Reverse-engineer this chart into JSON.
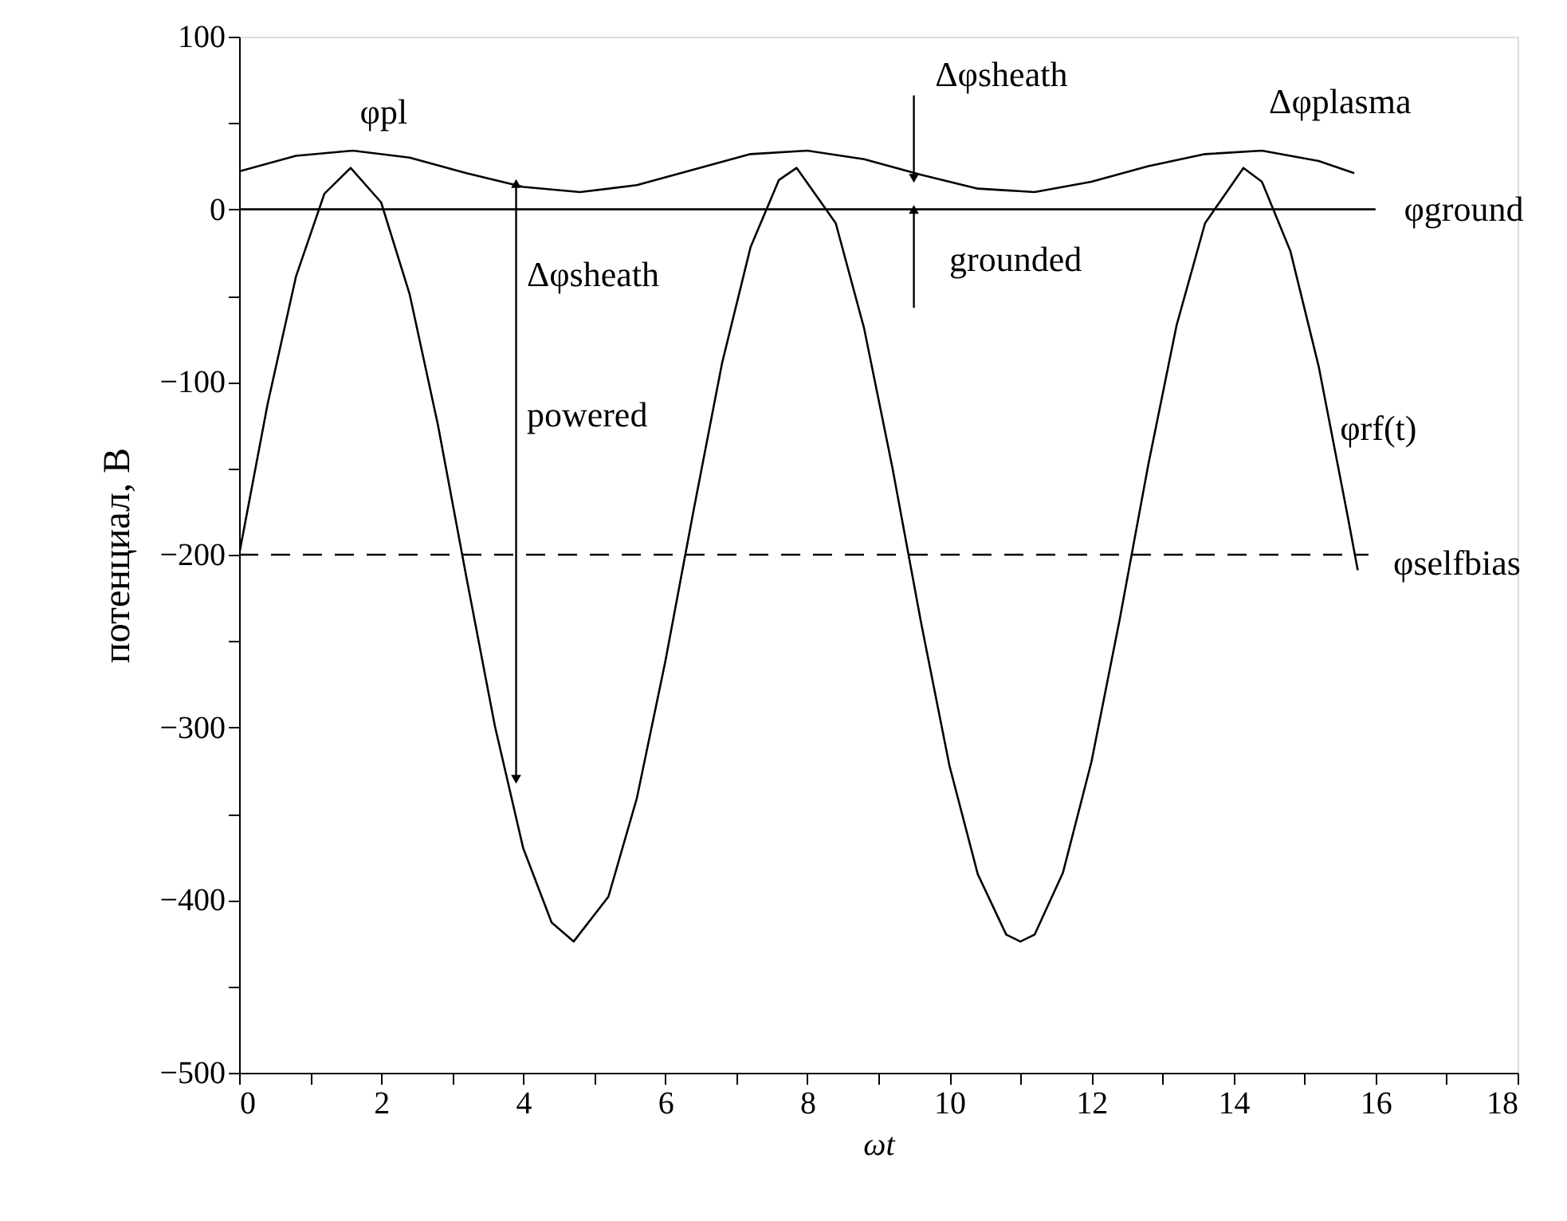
{
  "chart_data": {
    "type": "line",
    "xlabel": "ωt",
    "ylabel": "потенциал, В",
    "xlim": [
      0,
      18
    ],
    "ylim": [
      -500,
      100
    ],
    "xticks": [
      0,
      {
        "value": 1,
        "label": null
      },
      2,
      {
        "value": 3,
        "label": null
      },
      4,
      {
        "value": 5,
        "label": null
      },
      6,
      {
        "value": 7,
        "label": null
      },
      8,
      {
        "value": 9,
        "label": null
      },
      10,
      {
        "value": 11,
        "label": null
      },
      12,
      {
        "value": 13,
        "label": null
      },
      14,
      {
        "value": 15,
        "label": null
      },
      16,
      {
        "value": 17,
        "label": null
      },
      18
    ],
    "yticks": [
      {
        "value": -500,
        "label": "−500"
      },
      {
        "value": -450,
        "label": null
      },
      {
        "value": -400,
        "label": "−400"
      },
      {
        "value": -350,
        "label": null
      },
      {
        "value": -300,
        "label": "−300"
      },
      {
        "value": -250,
        "label": null
      },
      {
        "value": -200,
        "label": "−200"
      },
      {
        "value": -150,
        "label": null
      },
      {
        "value": -100,
        "label": "−100"
      },
      {
        "value": -50,
        "label": null
      },
      0,
      {
        "value": 50,
        "label": null
      },
      100
    ],
    "grid": false,
    "marker": "none",
    "series": [
      {
        "color": "#000000",
        "line_style": "solid",
        "x": [
          0,
          0.4,
          0.8,
          1.2,
          1.57,
          2.0,
          2.4,
          2.8,
          3.2,
          3.6,
          4.0,
          4.4,
          4.71,
          5.2,
          5.6,
          6.0,
          6.4,
          6.8,
          7.2,
          7.6,
          7.85,
          8.4,
          8.8,
          9.2,
          9.6,
          10.0,
          10.4,
          10.8,
          11.0,
          11.2,
          11.6,
          12.0,
          12.4,
          12.8,
          13.2,
          13.6,
          14.14,
          14.4,
          14.8,
          15.2,
          15.6,
          15.75
        ],
        "values": [
          -200,
          -113,
          -39,
          9,
          24,
          4,
          -49,
          -125,
          -213,
          -299,
          -370,
          -413,
          -424,
          -398,
          -341,
          -262,
          -174,
          -89,
          -22,
          17,
          24,
          -8,
          -69,
          -150,
          -239,
          -322,
          -385,
          -420,
          -424,
          -420,
          -384,
          -320,
          -237,
          -148,
          -67,
          -8,
          24,
          16,
          -24,
          -91,
          -176,
          -209
        ]
      },
      {
        "color": "#000000",
        "line_style": "solid",
        "x": [
          0,
          0.8,
          1.6,
          2.4,
          3.2,
          4.0,
          4.8,
          5.6,
          6.4,
          7.2,
          8.0,
          8.8,
          9.6,
          10.4,
          11.2,
          12.0,
          12.8,
          13.6,
          14.4,
          15.2,
          15.7
        ],
        "values": [
          22,
          31,
          34,
          30,
          21,
          13,
          10,
          14,
          23,
          32,
          34,
          29,
          20,
          12,
          10,
          16,
          25,
          32,
          34,
          28,
          21
        ]
      },
      {
        "color": "#000000",
        "line_style": "solid",
        "x": [
          0,
          16.0
        ],
        "values": [
          0,
          0
        ]
      },
      {
        "color": "#000000",
        "line_style": "dashed",
        "x": [
          0,
          15.9
        ],
        "values": [
          -200,
          -200
        ]
      }
    ],
    "annotations": [
      "φpl",
      "Δφsheath",
      "Δφplasma",
      "φground",
      "Δφsheath",
      "powered",
      "grounded",
      "φrf(t)",
      "φselfbias"
    ]
  }
}
